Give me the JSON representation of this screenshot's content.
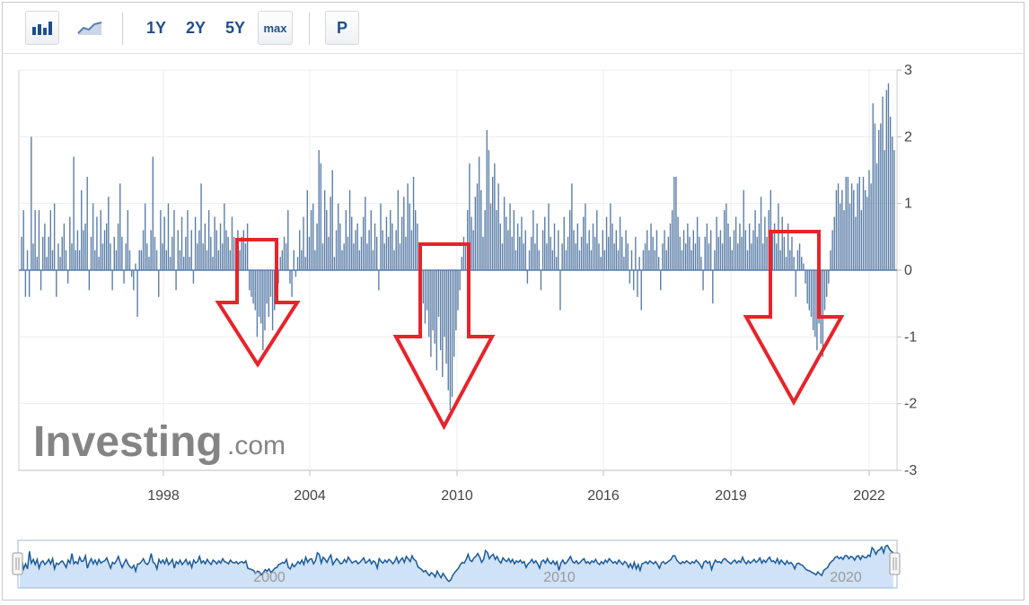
{
  "toolbar": {
    "range_buttons": [
      "1Y",
      "2Y",
      "5Y",
      "max"
    ],
    "p_label": "P",
    "icons": [
      "bar-chart-icon",
      "line-chart-icon"
    ]
  },
  "logo": {
    "main": "Investing",
    "suffix": ".com"
  },
  "navigator": {
    "labels": [
      "2000",
      "2010",
      "2020"
    ]
  },
  "colors": {
    "bars": "#5b7ea8",
    "arrows": "#e8232a",
    "navigator_fill": "#cfe2f8",
    "navigator_line": "#1b5a9a",
    "text": "#444444"
  },
  "chart_data": {
    "type": "bar",
    "title": "",
    "xlabel": "",
    "ylabel": "",
    "ylim": [
      -3,
      3
    ],
    "yticks": [
      3,
      2,
      1,
      0,
      -1,
      -2,
      -3
    ],
    "xtick_labels": [
      "1998",
      "2004",
      "2010",
      "2016",
      "2019",
      "2022"
    ],
    "grid": true,
    "annotations": [
      "down-arrow",
      "down-arrow",
      "down-arrow"
    ],
    "values": [
      0.5,
      0.9,
      -0.4,
      0.3,
      -0.4,
      2.0,
      0.4,
      0.9,
      0.2,
      0.9,
      -0.3,
      0.5,
      0.7,
      0.2,
      0.5,
      0.9,
      0.3,
      1.0,
      -0.4,
      0.4,
      0.2,
      0.5,
      0.7,
      0.3,
      -0.2,
      0.8,
      0.4,
      1.7,
      0.3,
      0.6,
      0.3,
      1.2,
      0.6,
      0.7,
      1.4,
      -0.3,
      0.5,
      1.0,
      0.3,
      0.8,
      0.2,
      0.9,
      0.4,
      0.6,
      0.7,
      1.1,
      0.4,
      -0.3,
      0.5,
      0.3,
      0.7,
      1.3,
      0.5,
      -0.2,
      0.4,
      0.9,
      0.3,
      -0.1,
      -0.3,
      0.1,
      -0.7,
      0.3,
      0.3,
      0.6,
      1.0,
      0.4,
      0.2,
      0.6,
      1.7,
      0.5,
      0.3,
      -0.4,
      0.9,
      0.4,
      0.8,
      0.3,
      1.0,
      0.2,
      0.5,
      0.9,
      -0.3,
      0.6,
      0.3,
      0.8,
      0.2,
      0.5,
      0.9,
      0.2,
      0.6,
      -0.2,
      0.8,
      0.4,
      0.6,
      1.3,
      0.4,
      0.7,
      0.3,
      0.9,
      0.5,
      0.2,
      0.8,
      0.6,
      0.3,
      0.7,
      0.4,
      1.0,
      0.6,
      0.5,
      0.3,
      0.8,
      0.5,
      0.4,
      0.6,
      0.3,
      0.5,
      0.6,
      0.4,
      0.7,
      -0.3,
      -0.4,
      -0.5,
      -0.6,
      -1.0,
      -0.7,
      -0.8,
      -1.2,
      -0.9,
      -0.5,
      -0.7,
      -0.4,
      -0.9,
      -0.6,
      -0.3,
      -0.2,
      0.2,
      0.3,
      0.5,
      0.4,
      0.9,
      -0.2,
      -0.4,
      0.3,
      -0.1,
      0.2,
      0.6,
      0.3,
      0.8,
      0.2,
      1.2,
      0.5,
      0.9,
      1.0,
      0.3,
      0.7,
      1.8,
      1.6,
      0.4,
      1.2,
      0.9,
      0.5,
      1.1,
      1.5,
      0.2,
      0.6,
      1.0,
      0.7,
      0.3,
      0.4,
      0.9,
      0.5,
      1.2,
      0.8,
      0.4,
      0.6,
      0.7,
      0.3,
      0.5,
      0.8,
      1.1,
      0.4,
      0.6,
      0.9,
      0.3,
      0.7,
      0.5,
      -0.3,
      1.0,
      0.6,
      0.4,
      0.8,
      0.5,
      0.9,
      0.7,
      0.3,
      0.6,
      1.2,
      0.4,
      0.8,
      1.1,
      0.5,
      1.3,
      1.0,
      0.6,
      1.4,
      0.9,
      0.7,
      -0.1,
      -0.3,
      -0.5,
      -0.8,
      -0.6,
      -1.0,
      -1.3,
      -0.9,
      -1.1,
      -1.5,
      -0.7,
      -1.2,
      -1.6,
      -1.0,
      -1.4,
      -1.8,
      -2.1,
      -1.9,
      -1.3,
      -0.9,
      -0.6,
      -0.3,
      0.2,
      0.5,
      0.4,
      0.9,
      1.6,
      0.8,
      0.6,
      1.1,
      1.3,
      1.7,
      1.2,
      0.5,
      0.9,
      2.1,
      1.8,
      1.0,
      1.4,
      1.6,
      0.9,
      1.3,
      0.7,
      0.4,
      1.1,
      0.8,
      0.6,
      1.0,
      0.5,
      0.9,
      0.3,
      0.7,
      0.5,
      0.8,
      0.4,
      0.6,
      -0.2,
      0.3,
      0.5,
      0.9,
      0.4,
      0.7,
      0.3,
      -0.3,
      0.6,
      0.8,
      0.4,
      1.0,
      0.5,
      0.3,
      0.7,
      0.2,
      0.6,
      -0.6,
      0.4,
      0.8,
      0.3,
      0.5,
      0.9,
      1.3,
      0.6,
      0.4,
      0.7,
      0.3,
      0.5,
      0.8,
      1.0,
      0.4,
      0.6,
      0.3,
      0.7,
      0.5,
      0.9,
      0.4,
      0.2,
      0.6,
      0.3,
      0.8,
      0.5,
      1.0,
      0.7,
      0.4,
      0.6,
      0.3,
      0.8,
      0.5,
      0.2,
      0.6,
      0.4,
      -0.2,
      0.3,
      -0.3,
      0.5,
      -0.4,
      0.2,
      -0.6,
      0.3,
      0.4,
      0.6,
      0.3,
      0.7,
      0.5,
      0.3,
      0.6,
      0.2,
      -0.3,
      0.4,
      0.6,
      0.3,
      0.5,
      0.7,
      0.9,
      1.4,
      1.4,
      0.8,
      0.5,
      0.3,
      0.6,
      0.4,
      0.7,
      0.5,
      0.3,
      0.6,
      0.4,
      0.8,
      0.5,
      0.2,
      -0.3,
      0.5,
      0.7,
      0.4,
      0.6,
      -0.5,
      0.3,
      0.8,
      0.5,
      0.6,
      0.4,
      0.9,
      1.0,
      0.7,
      0.5,
      0.3,
      0.6,
      0.8,
      0.4,
      0.7,
      0.5,
      1.2,
      0.6,
      0.3,
      0.7,
      0.4,
      0.6,
      0.9,
      0.5,
      0.7,
      1.1,
      0.4,
      0.8,
      0.5,
      0.9,
      1.2,
      0.6,
      0.7,
      0.4,
      1.0,
      0.3,
      0.8,
      0.5,
      0.2,
      0.7,
      0.3,
      0.5,
      0.2,
      -0.4,
      0.3,
      0.4,
      0.2,
      0.1,
      -0.2,
      -0.5,
      -0.6,
      -0.7,
      -0.9,
      -1.0,
      -1.2,
      -0.8,
      -1.1,
      -1.3,
      -0.6,
      -0.4,
      -0.2,
      0.3,
      0.6,
      0.8,
      1.2,
      1.3,
      1.0,
      1.2,
      0.9,
      1.4,
      1.4,
      1.0,
      1.3,
      1.2,
      0.8,
      1.3,
      1.4,
      0.9,
      1.4,
      1.2,
      1.1,
      1.5,
      1.3,
      2.5,
      2.2,
      1.6,
      2.1,
      2.2,
      2.6,
      1.8,
      2.7,
      2.8,
      2.3,
      2.0,
      1.8
    ]
  }
}
